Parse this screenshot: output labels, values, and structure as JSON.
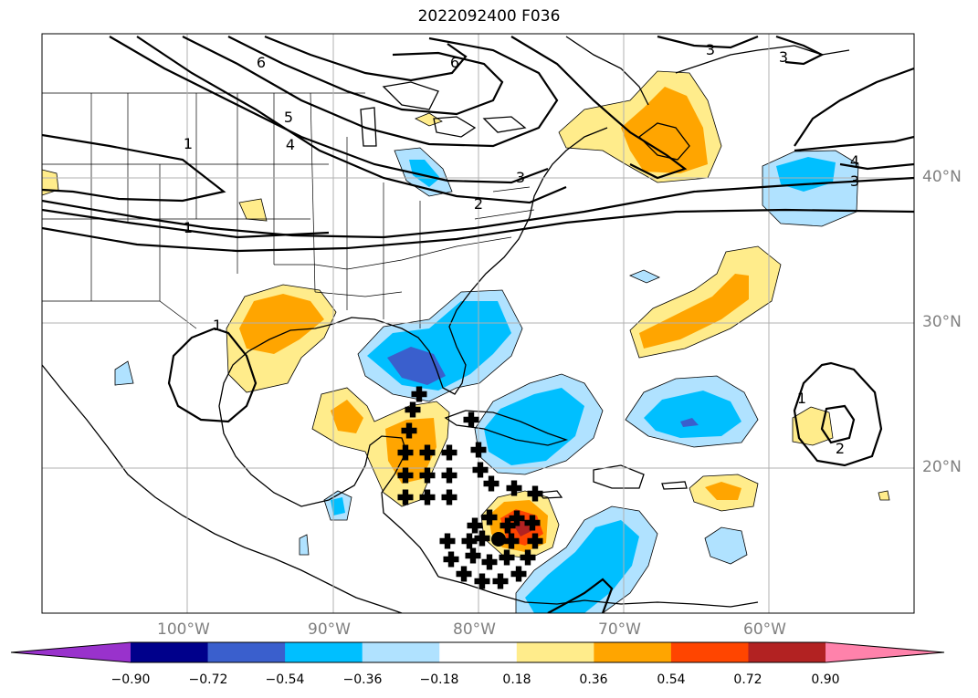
{
  "title": "2022092400 F036",
  "lat_labels": [
    "40°N",
    "30°N",
    "20°N"
  ],
  "lon_labels": [
    "100°W",
    "90°W",
    "80°W",
    "70°W",
    "60°W"
  ],
  "colorbar": {
    "ticks": [
      "−0.90",
      "−0.72",
      "−0.54",
      "−0.36",
      "−0.18",
      "0.18",
      "0.36",
      "0.54",
      "0.72",
      "0.90"
    ],
    "colors": [
      "#9932cc",
      "#00008b",
      "#3a5fcd",
      "#00bfff",
      "#b0e2ff",
      "#ffffff",
      "#ffec8b",
      "#ffa500",
      "#ff4500",
      "#b22222",
      "#ff82ab"
    ]
  },
  "contour_labels": [
    "6",
    "6",
    "3",
    "5",
    "4",
    "1",
    "3",
    "2",
    "1",
    "1",
    "4",
    "3",
    "1",
    "2",
    "3"
  ]
}
